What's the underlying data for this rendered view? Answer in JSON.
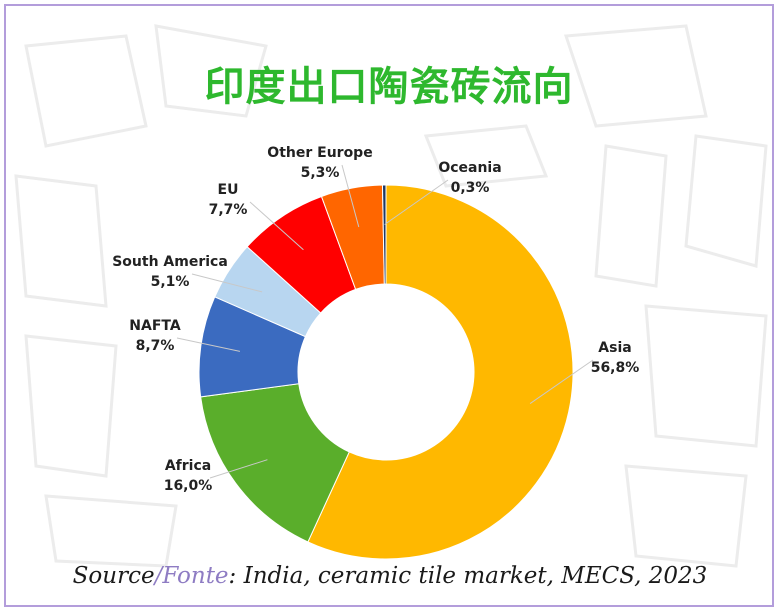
{
  "title": "印度出口陶瓷砖流向",
  "source": {
    "prefix": "Source",
    "slash": "/",
    "accent": "Fonte",
    "rest": ": India, ceramic tile market, MECS, 2023"
  },
  "chart_data": {
    "type": "pie",
    "donut": true,
    "title": "印度出口陶瓷砖流向",
    "slices": [
      {
        "name": "Asia",
        "value": 56.8,
        "label": "56,8%",
        "color": "#FFB800"
      },
      {
        "name": "Africa",
        "value": 16.0,
        "label": "16,0%",
        "color": "#5AAE2B"
      },
      {
        "name": "NAFTA",
        "value": 8.7,
        "label": "8,7%",
        "color": "#3B6BC0"
      },
      {
        "name": "South America",
        "value": 5.1,
        "label": "5,1%",
        "color": "#B8D6F0"
      },
      {
        "name": "EU",
        "value": 7.7,
        "label": "7,7%",
        "color": "#FF0000"
      },
      {
        "name": "Other Europe",
        "value": 5.3,
        "label": "5,3%",
        "color": "#FF6600"
      },
      {
        "name": "Oceania",
        "value": 0.3,
        "label": "0,3%",
        "color": "#1F3864"
      }
    ]
  }
}
